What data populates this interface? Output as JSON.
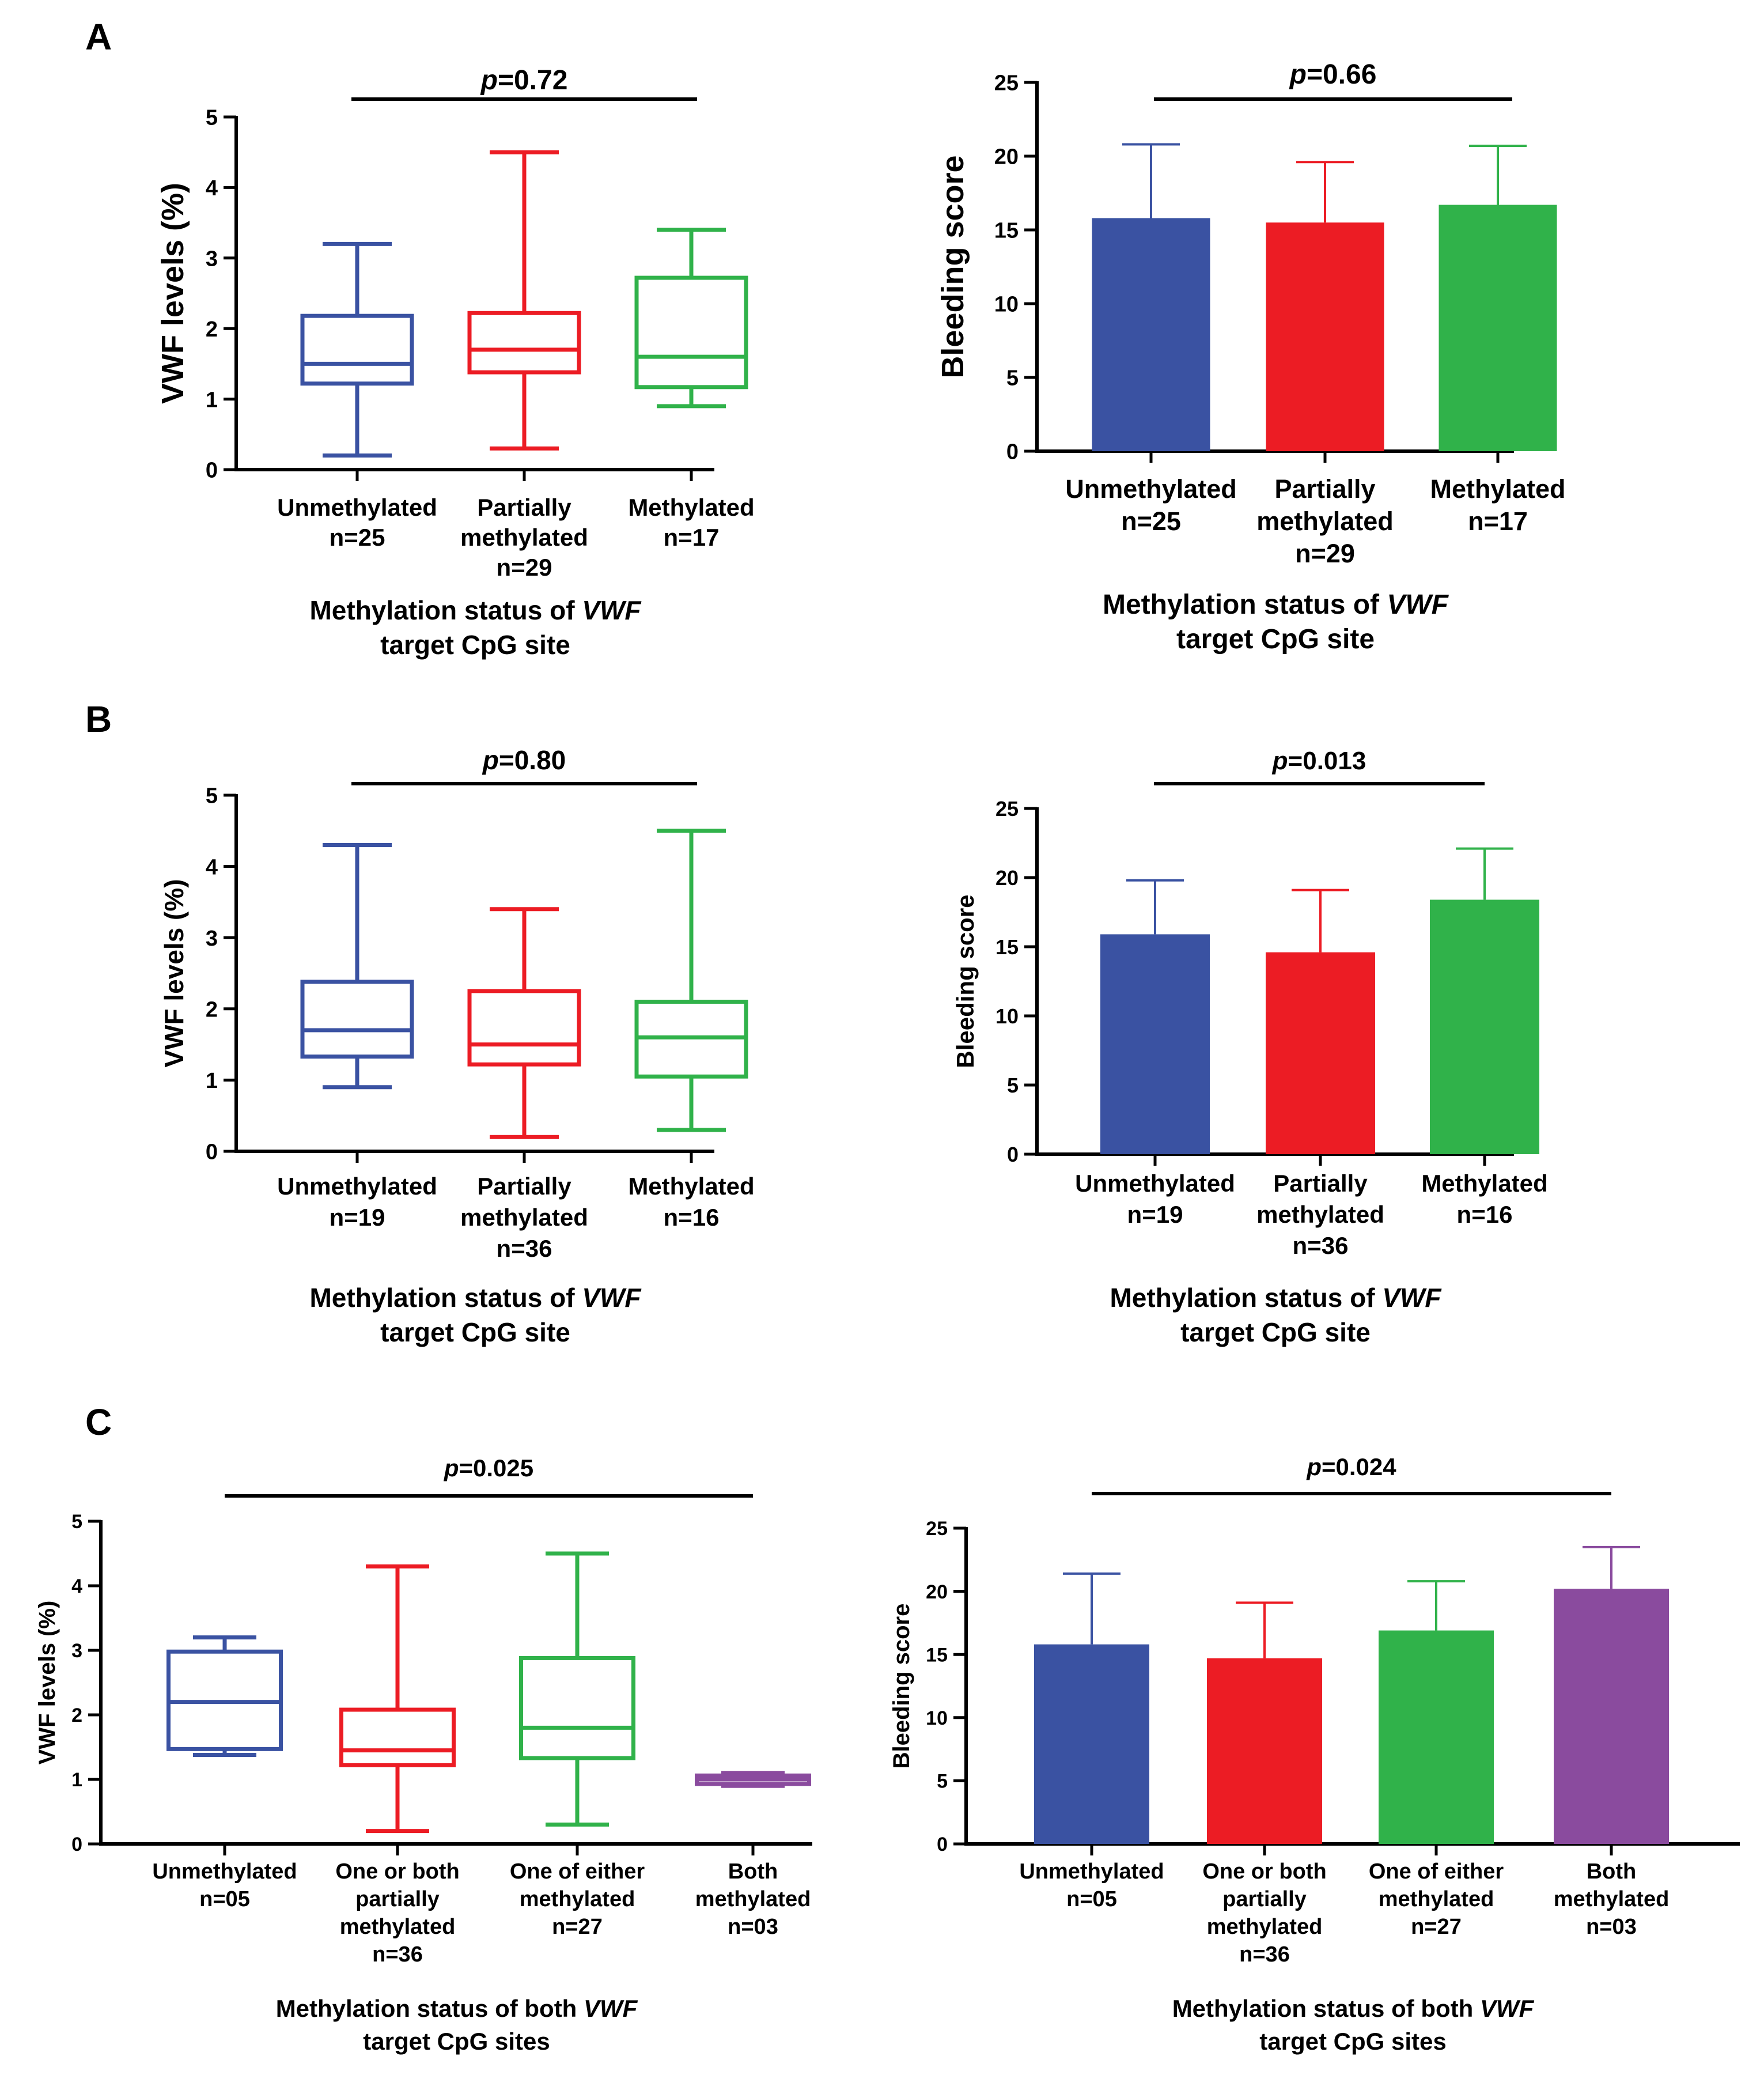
{
  "panels": [
    {
      "letter": "A"
    },
    {
      "letter": "B"
    },
    {
      "letter": "C"
    }
  ],
  "colors": {
    "blue": "#3a52a2",
    "red": "#ec1c24",
    "green": "#30b24a",
    "purple": "#8a4b9e",
    "axis": "#000000"
  },
  "chart_data": [
    {
      "id": "A-box",
      "panel": "A",
      "type": "box",
      "ylabel": "VWF levels (%)",
      "ylim": [
        0,
        5
      ],
      "yticks": [
        "0",
        "1",
        "2",
        "3",
        "4",
        "5"
      ],
      "p_label": "=0.72",
      "xlabel_parts": [
        "Methylation status of ",
        "VWF",
        "",
        "target CpG site"
      ],
      "groups": [
        {
          "label": [
            "Unmethylated",
            "n=25"
          ],
          "color": "blue",
          "min": 0.2,
          "q1": 1.22,
          "median": 1.5,
          "q3": 2.18,
          "max": 3.2
        },
        {
          "label": [
            "Partially",
            "methylated",
            "n=29"
          ],
          "color": "red",
          "min": 0.3,
          "q1": 1.38,
          "median": 1.7,
          "q3": 2.22,
          "max": 4.5
        },
        {
          "label": [
            "Methylated",
            "n=17"
          ],
          "color": "green",
          "min": 0.9,
          "q1": 1.17,
          "median": 1.6,
          "q3": 2.72,
          "max": 3.4
        }
      ]
    },
    {
      "id": "A-bar",
      "panel": "A",
      "type": "bar",
      "ylabel": "Bleeding score",
      "ylim": [
        0,
        25
      ],
      "yticks": [
        "0",
        "5",
        "10",
        "15",
        "20",
        "25"
      ],
      "p_label": "=0.66",
      "xlabel_parts": [
        "Methylation status of ",
        "VWF",
        "",
        "target CpG site"
      ],
      "groups": [
        {
          "label": [
            "Unmethylated",
            "n=25"
          ],
          "color": "blue",
          "value": 15.8,
          "error": 5.0
        },
        {
          "label": [
            "Partially",
            "methylated",
            "n=29"
          ],
          "color": "red",
          "value": 15.5,
          "error": 4.1
        },
        {
          "label": [
            "Methylated",
            "n=17"
          ],
          "color": "green",
          "value": 16.7,
          "error": 4.0
        }
      ]
    },
    {
      "id": "B-box",
      "panel": "B",
      "type": "box",
      "ylabel": "VWF levels (%)",
      "ylim": [
        0,
        5
      ],
      "yticks": [
        "0",
        "1",
        "2",
        "3",
        "4",
        "5"
      ],
      "p_label": "=0.80",
      "xlabel_parts": [
        "Methylation status of ",
        "VWF",
        "",
        "target CpG site"
      ],
      "groups": [
        {
          "label": [
            "Unmethylated",
            "n=19"
          ],
          "color": "blue",
          "min": 0.9,
          "q1": 1.33,
          "median": 1.7,
          "q3": 2.38,
          "max": 4.3
        },
        {
          "label": [
            "Partially",
            "methylated",
            "n=36"
          ],
          "color": "red",
          "min": 0.2,
          "q1": 1.22,
          "median": 1.5,
          "q3": 2.25,
          "max": 3.4
        },
        {
          "label": [
            "Methylated",
            "n=16"
          ],
          "color": "green",
          "min": 0.3,
          "q1": 1.05,
          "median": 1.6,
          "q3": 2.1,
          "max": 4.5
        }
      ]
    },
    {
      "id": "B-bar",
      "panel": "B",
      "type": "bar",
      "ylabel": "Bleeding score",
      "ylim": [
        0,
        25
      ],
      "yticks": [
        "0",
        "5",
        "10",
        "15",
        "20",
        "25"
      ],
      "p_label": "=0.013",
      "xlabel_parts": [
        "Methylation status of ",
        "VWF",
        "",
        "target CpG site"
      ],
      "groups": [
        {
          "label": [
            "Unmethylated",
            "n=19"
          ],
          "color": "blue",
          "value": 15.9,
          "error": 3.9
        },
        {
          "label": [
            "Partially",
            "methylated",
            "n=36"
          ],
          "color": "red",
          "value": 14.6,
          "error": 4.5
        },
        {
          "label": [
            "Methylated",
            "n=16"
          ],
          "color": "green",
          "value": 18.4,
          "error": 3.7
        }
      ]
    },
    {
      "id": "C-box",
      "panel": "C",
      "type": "box",
      "ylabel": "VWF levels (%)",
      "ylim": [
        0,
        5
      ],
      "yticks": [
        "0",
        "1",
        "2",
        "3",
        "4",
        "5"
      ],
      "p_label": "=0.025",
      "xlabel_parts": [
        "Methylation status of both ",
        "VWF",
        "",
        "target CpG sites"
      ],
      "groups": [
        {
          "label": [
            "Unmethylated",
            "n=05"
          ],
          "color": "blue",
          "min": 1.38,
          "q1": 1.47,
          "median": 2.2,
          "q3": 2.98,
          "max": 3.2
        },
        {
          "label": [
            "One or both",
            "partially",
            "methylated",
            "n=36"
          ],
          "color": "red",
          "min": 0.2,
          "q1": 1.22,
          "median": 1.45,
          "q3": 2.08,
          "max": 4.3
        },
        {
          "label": [
            "One of either",
            "methylated",
            "n=27"
          ],
          "color": "green",
          "min": 0.3,
          "q1": 1.33,
          "median": 1.8,
          "q3": 2.88,
          "max": 4.5
        },
        {
          "label": [
            "Both",
            "methylated",
            "n=03"
          ],
          "color": "purple",
          "min": 0.9,
          "q1": 0.93,
          "median": 1.0,
          "q3": 1.06,
          "max": 1.1
        }
      ]
    },
    {
      "id": "C-bar",
      "panel": "C",
      "type": "bar",
      "ylabel": "Bleeding score",
      "ylim": [
        0,
        25
      ],
      "yticks": [
        "0",
        "5",
        "10",
        "15",
        "20",
        "25"
      ],
      "p_label": "=0.024",
      "xlabel_parts": [
        "Methylation status of both ",
        "VWF",
        "",
        "target CpG sites"
      ],
      "groups": [
        {
          "label": [
            "Unmethylated",
            "n=05"
          ],
          "color": "blue",
          "value": 15.8,
          "error": 5.6
        },
        {
          "label": [
            "One or both",
            "partially",
            "methylated",
            "n=36"
          ],
          "color": "red",
          "value": 14.7,
          "error": 4.4
        },
        {
          "label": [
            "One of either",
            "methylated",
            "n=27"
          ],
          "color": "green",
          "value": 16.9,
          "error": 3.9
        },
        {
          "label": [
            "Both",
            "methylated",
            "n=03"
          ],
          "color": "purple",
          "value": 20.2,
          "error": 3.3
        }
      ]
    }
  ]
}
